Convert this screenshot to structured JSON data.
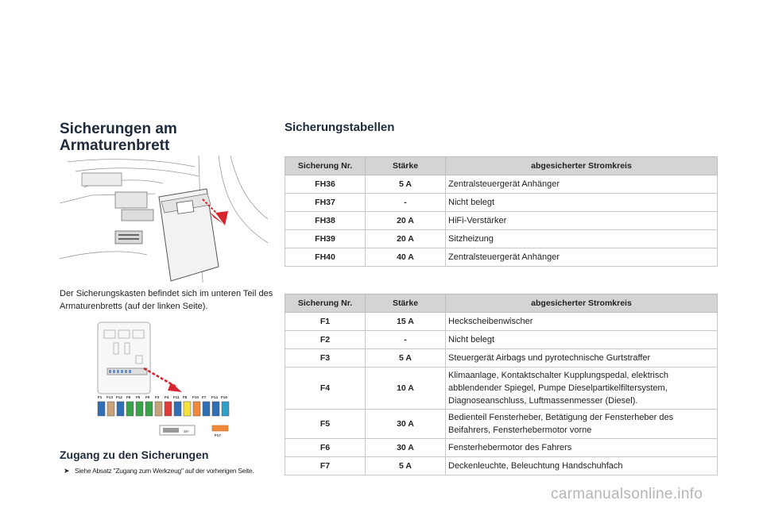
{
  "left": {
    "title": "Sicherungen am Armaturenbrett",
    "description": "Der Sicherungskasten befindet sich im unteren Teil des Armaturenbretts (auf der linken Seite).",
    "access_title": "Zugang zu den Sicherungen",
    "access_note": "Siehe Absatz \"Zugang zum Werkzeug\" auf der vorherigen Seite.",
    "fuse_strip_labels": [
      "F1",
      "F13",
      "F12",
      "F6",
      "F5",
      "F9",
      "F3",
      "F4",
      "F11",
      "F8",
      "F10",
      "F7",
      "F14",
      "F16"
    ],
    "fuse_colors": [
      "#2f6fb5",
      "#c8a37a",
      "#2f6fb5",
      "#3aa44a",
      "#3aa44a",
      "#3aa44a",
      "#c8a37a",
      "#e03a3a",
      "#2f6fb5",
      "#f2e23a",
      "#f08a3a",
      "#2f6fb5",
      "#2f6fb5",
      "#2fa0c8"
    ],
    "sh_label": "SH",
    "f17_label": "F17"
  },
  "right": {
    "title": "Sicherungstabellen",
    "headers": [
      "Sicherung Nr.",
      "Stärke",
      "abgesicherter Stromkreis"
    ],
    "table1": [
      {
        "nr": "FH36",
        "amp": "5 A",
        "circuit": "Zentralsteuergerät Anhänger"
      },
      {
        "nr": "FH37",
        "amp": "-",
        "circuit": "Nicht belegt"
      },
      {
        "nr": "FH38",
        "amp": "20 A",
        "circuit": "HiFi-Verstärker"
      },
      {
        "nr": "FH39",
        "amp": "20 A",
        "circuit": "Sitzheizung"
      },
      {
        "nr": "FH40",
        "amp": "40 A",
        "circuit": "Zentralsteuergerät Anhänger"
      }
    ],
    "table2": [
      {
        "nr": "F1",
        "amp": "15 A",
        "circuit": "Heckscheibenwischer"
      },
      {
        "nr": "F2",
        "amp": "-",
        "circuit": "Nicht belegt"
      },
      {
        "nr": "F3",
        "amp": "5 A",
        "circuit": "Steuergerät Airbags und pyrotechnische Gurtstraffer"
      },
      {
        "nr": "F4",
        "amp": "10 A",
        "circuit": "Klimaanlage, Kontaktschalter Kupplungspedal, elektrisch abblendender Spiegel, Pumpe Dieselpartikelfiltersystem, Diagnoseanschluss, Luftmassenmesser (Diesel)."
      },
      {
        "nr": "F5",
        "amp": "30 A",
        "circuit": "Bedienteil Fensterheber, Betätigung der Fensterheber des Beifahrers, Fensterhebermotor vorne"
      },
      {
        "nr": "F6",
        "amp": "30 A",
        "circuit": "Fensterhebermotor des Fahrers"
      },
      {
        "nr": "F7",
        "amp": "5 A",
        "circuit": "Deckenleuchte, Beleuchtung Handschuhfach"
      }
    ]
  },
  "watermark": "carmanualsonline.info"
}
